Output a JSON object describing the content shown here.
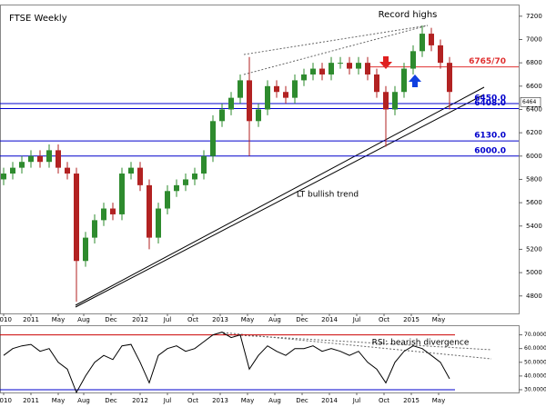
{
  "chart_data": {
    "type": "candlestick",
    "title": "FTSE Weekly",
    "annotations": [
      "Record highs",
      "LT bullish trend"
    ],
    "xlim": [
      0,
      285
    ],
    "xticks": [
      {
        "value": 2,
        "label": "2010"
      },
      {
        "value": 17,
        "label": "2011"
      },
      {
        "value": 32,
        "label": "May"
      },
      {
        "value": 46,
        "label": "Aug"
      },
      {
        "value": 61,
        "label": "Dec"
      },
      {
        "value": 77,
        "label": "2012"
      },
      {
        "value": 92,
        "label": "Jul"
      },
      {
        "value": 106,
        "label": "Oct"
      },
      {
        "value": 121,
        "label": "2013"
      },
      {
        "value": 136,
        "label": "May"
      },
      {
        "value": 151,
        "label": "Aug"
      },
      {
        "value": 166,
        "label": "Dec"
      },
      {
        "value": 181,
        "label": "2014"
      },
      {
        "value": 196,
        "label": "Jul"
      },
      {
        "value": 211,
        "label": "Oct"
      },
      {
        "value": 226,
        "label": "2015"
      },
      {
        "value": 241,
        "label": "May"
      }
    ],
    "ylim": [
      4650,
      7300
    ],
    "yticks": [
      4800,
      5000,
      5200,
      5400,
      5600,
      5800,
      6000,
      6200,
      6400,
      6600,
      6800,
      7000,
      7200
    ],
    "up_color": "#2e8b2e",
    "down_color": "#b22222",
    "x": [
      2,
      7,
      12,
      17,
      22,
      27,
      32,
      37,
      42,
      47,
      52,
      57,
      62,
      67,
      72,
      77,
      82,
      87,
      92,
      97,
      102,
      107,
      112,
      117,
      122,
      127,
      132,
      137,
      142,
      147,
      152,
      157,
      162,
      167,
      172,
      177,
      182,
      187,
      192,
      197,
      202,
      207,
      212,
      217,
      222,
      227,
      232,
      237,
      242,
      247
    ],
    "open": [
      5800,
      5850,
      5900,
      5950,
      6000,
      5950,
      6050,
      5900,
      5850,
      5100,
      5300,
      5450,
      5550,
      5500,
      5850,
      5900,
      5750,
      5300,
      5550,
      5700,
      5750,
      5800,
      5850,
      6000,
      6300,
      6400,
      6500,
      6650,
      6300,
      6400,
      6600,
      6550,
      6500,
      6650,
      6700,
      6750,
      6700,
      6800,
      6800,
      6750,
      6800,
      6700,
      6550,
      6400,
      6550,
      6750,
      6900,
      7050,
      6950,
      6800
    ],
    "high": [
      5900,
      5950,
      6000,
      6050,
      6050,
      6100,
      6100,
      5950,
      5900,
      5350,
      5500,
      5600,
      5600,
      5900,
      5950,
      5950,
      5800,
      5600,
      5750,
      5800,
      5850,
      5900,
      6050,
      6350,
      6450,
      6550,
      6700,
      6850,
      6450,
      6650,
      6650,
      6600,
      6700,
      6750,
      6800,
      6800,
      6850,
      6850,
      6850,
      6850,
      6850,
      6750,
      6600,
      6600,
      6800,
      6950,
      7120,
      7100,
      7000,
      6850
    ],
    "low": [
      5750,
      5800,
      5850,
      5900,
      5900,
      5900,
      5850,
      5800,
      4750,
      5050,
      5250,
      5400,
      5450,
      5450,
      5800,
      5700,
      5200,
      5250,
      5500,
      5650,
      5700,
      5750,
      5800,
      5950,
      6250,
      6350,
      6450,
      6000,
      6250,
      6350,
      6500,
      6450,
      6450,
      6600,
      6650,
      6650,
      6650,
      6750,
      6700,
      6700,
      6650,
      6500,
      6080,
      6350,
      6500,
      6700,
      6850,
      6900,
      6750,
      6400
    ],
    "close": [
      5850,
      5900,
      5950,
      6000,
      5950,
      6050,
      5900,
      5850,
      5100,
      5300,
      5450,
      5550,
      5500,
      5850,
      5900,
      5750,
      5300,
      5550,
      5700,
      5750,
      5800,
      5850,
      6000,
      6300,
      6400,
      6500,
      6650,
      6300,
      6400,
      6600,
      6550,
      6500,
      6650,
      6700,
      6750,
      6700,
      6800,
      6800,
      6750,
      6800,
      6700,
      6550,
      6400,
      6550,
      6750,
      6900,
      7050,
      6950,
      6800,
      6550
    ],
    "last_price": 6464,
    "levels": [
      {
        "value": 6765,
        "label": "6765/70",
        "color": "#e03030",
        "from": 202
      },
      {
        "value": 6450,
        "label": "6450.0",
        "color": "#0000cc",
        "from": 0
      },
      {
        "value": 6408,
        "label": "6408.0",
        "color": "#0000cc",
        "from": 0
      },
      {
        "value": 6130,
        "label": "6130.0",
        "color": "#0000cc",
        "from": 0
      },
      {
        "value": 6000,
        "label": "6000.0",
        "color": "#0000cc",
        "from": 0
      }
    ],
    "rsi": {
      "annotation": "RSI: bearish divergence",
      "color": "#000000",
      "ylim": [
        28,
        77
      ],
      "yticks": [
        {
          "value": 70,
          "label": "70.0000"
        },
        {
          "value": 60,
          "label": "60.0000"
        },
        {
          "value": 50,
          "label": "50.0000"
        },
        {
          "value": 40,
          "label": "40.0000"
        },
        {
          "value": 30,
          "label": "30.0000"
        }
      ],
      "levels": [
        {
          "value": 70,
          "color": "#cc0000"
        },
        {
          "value": 30,
          "color": "#0000cc"
        }
      ],
      "values": [
        55,
        60,
        62,
        63,
        58,
        60,
        50,
        45,
        28,
        40,
        50,
        55,
        52,
        62,
        63,
        50,
        35,
        55,
        60,
        62,
        58,
        60,
        65,
        70,
        72,
        68,
        70,
        45,
        55,
        62,
        58,
        55,
        60,
        60,
        62,
        58,
        60,
        58,
        55,
        58,
        50,
        45,
        35,
        50,
        58,
        62,
        60,
        55,
        50,
        38
      ]
    }
  }
}
